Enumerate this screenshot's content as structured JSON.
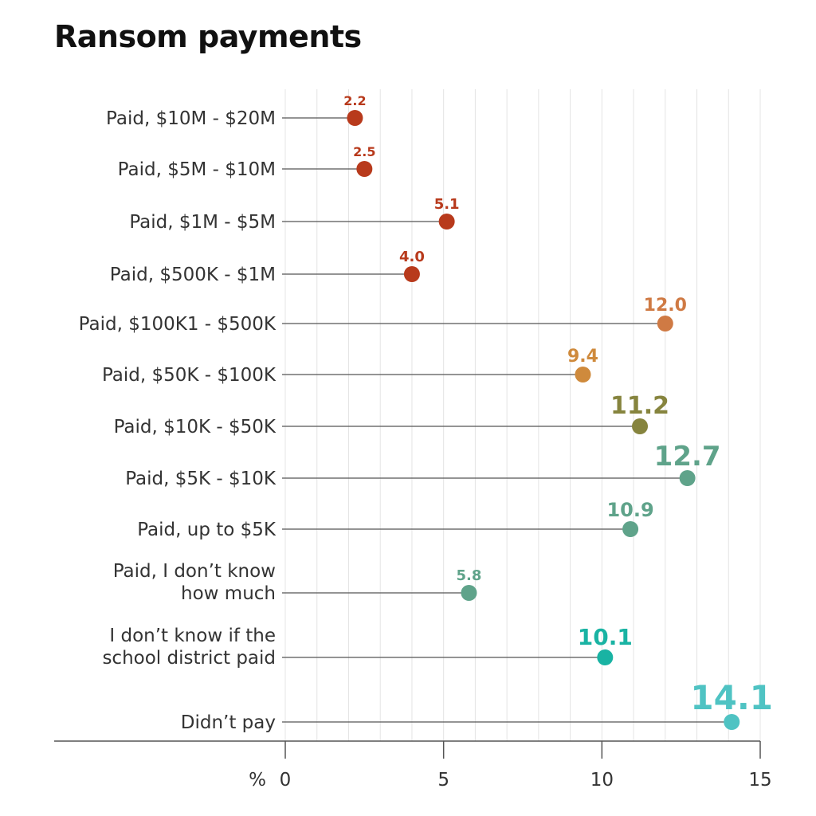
{
  "title": "Ransom payments",
  "chart_data": {
    "type": "lollipop",
    "title": "Ransom payments",
    "xlabel": "%",
    "xlim": [
      0,
      15
    ],
    "xticks": [
      0,
      5,
      10,
      15
    ],
    "grid": true,
    "categories": [
      "Paid, $10M - $20M",
      "Paid, $5M - $10M",
      "Paid, $1M - $5M",
      "Paid, $500K - $1M",
      "Paid, $100K1 - $500K",
      "Paid, $50K - $100K",
      "Paid, $10K - $50K",
      "Paid, $5K - $10K",
      "Paid, up to $5K",
      "Paid, I don’t know how much",
      "I don’t know if the school district paid",
      "Didn’t pay"
    ],
    "label_lines": [
      [
        "Paid, $10M - $20M"
      ],
      [
        "Paid, $5M - $10M"
      ],
      [
        "Paid, $1M - $5M"
      ],
      [
        "Paid, $500K - $1M"
      ],
      [
        "Paid, $100K1 - $500K"
      ],
      [
        "Paid, $50K - $100K"
      ],
      [
        "Paid, $10K - $50K"
      ],
      [
        "Paid, $5K - $10K"
      ],
      [
        "Paid, up to $5K"
      ],
      [
        "Paid, I don’t know",
        "how much"
      ],
      [
        "I don’t know if the",
        "school district paid"
      ],
      [
        "Didn’t pay"
      ]
    ],
    "values": [
      2.2,
      2.5,
      5.1,
      4.0,
      12.0,
      9.4,
      11.2,
      12.7,
      10.9,
      5.8,
      10.1,
      14.1
    ],
    "value_labels": [
      "2.2",
      "2.5",
      "5.1",
      "4.0",
      "12.0",
      "9.4",
      "11.2",
      "12.7",
      "10.9",
      "5.8",
      "10.1",
      "14.1"
    ],
    "colors": [
      "#b83a1c",
      "#b83a1c",
      "#b83a1c",
      "#b83a1c",
      "#cf7a44",
      "#cf8a3c",
      "#86843e",
      "#5fa38a",
      "#5fa38a",
      "#5fa38a",
      "#19b3a3",
      "#4fc3c3"
    ]
  }
}
